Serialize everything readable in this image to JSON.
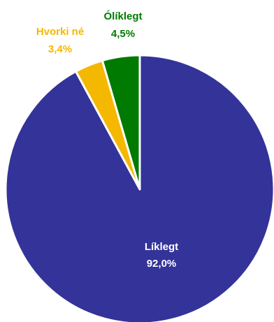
{
  "chart_data": {
    "type": "pie",
    "series": [
      {
        "categories": [
          "Líklegt",
          "Hvorki né",
          "Ólíklegt"
        ],
        "values": [
          92.0,
          3.4,
          4.5
        ],
        "value_labels": [
          "92,0%",
          "3,4%",
          "4,5%"
        ]
      }
    ],
    "colors": [
      "#333399",
      "#F5B800",
      "#007A00"
    ],
    "label_colors": [
      "#ffffff",
      "#F5B800",
      "#007A00"
    ],
    "start_angle_deg": 0,
    "direction": "clockwise",
    "legend": "none"
  }
}
